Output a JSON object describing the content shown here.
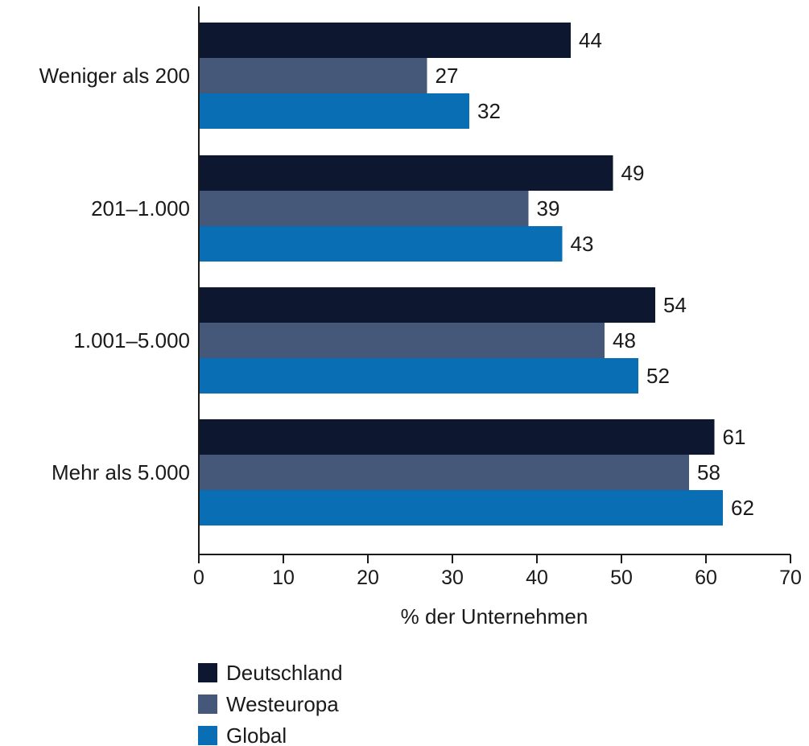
{
  "chart_data": {
    "type": "bar",
    "orientation": "horizontal",
    "categories": [
      "Weniger als 200",
      "201–1.000",
      "1.001–5.000",
      "Mehr als 5.000"
    ],
    "series": [
      {
        "name": "Deutschland",
        "color": "#0d1730",
        "values": [
          44,
          49,
          54,
          61
        ]
      },
      {
        "name": "Westeuropa",
        "color": "#46587a",
        "values": [
          27,
          39,
          48,
          58
        ]
      },
      {
        "name": "Global",
        "color": "#0a6eb4",
        "values": [
          32,
          43,
          52,
          62
        ]
      }
    ],
    "xlabel": "% der Unternehmen",
    "ylabel": "",
    "xlim": [
      0,
      70
    ],
    "xticks": [
      0,
      10,
      20,
      30,
      40,
      50,
      60,
      70
    ],
    "grid": false,
    "legend_position": "bottom-left",
    "data_labels": true
  }
}
